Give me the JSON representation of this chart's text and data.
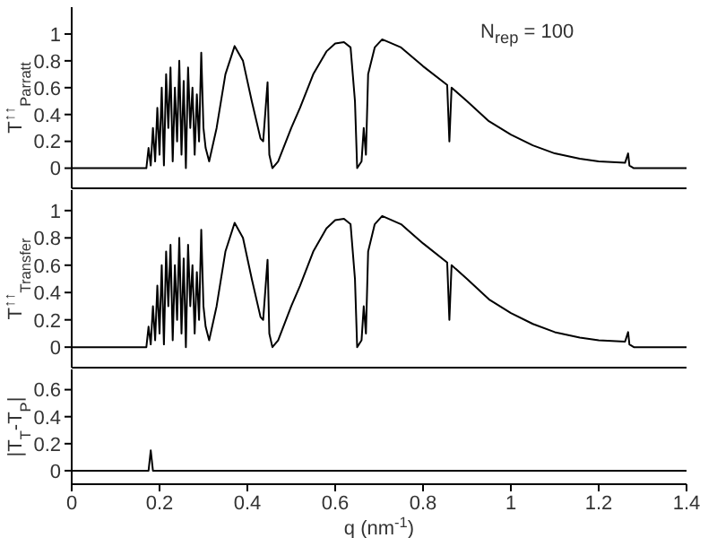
{
  "chart_data": [
    {
      "type": "line",
      "ylabel": "T$^{↑↑}$$_{Parratt}$",
      "annotations": [
        "N$_{rep}$ = 100"
      ],
      "xlim": [
        0,
        1.4
      ],
      "xticks": [
        0,
        0.2,
        0.4,
        0.6,
        0.8,
        1,
        1.2,
        1.4
      ],
      "ylim": [
        -0.15,
        1.2
      ],
      "yticks": [
        0,
        0.2,
        0.4,
        0.6,
        0.8,
        1
      ],
      "tick_labels": "y",
      "grid": false,
      "legend": false,
      "x": [
        0,
        0.17,
        0.175,
        0.18,
        0.185,
        0.19,
        0.195,
        0.2,
        0.205,
        0.21,
        0.215,
        0.22,
        0.225,
        0.23,
        0.235,
        0.24,
        0.245,
        0.25,
        0.255,
        0.26,
        0.265,
        0.27,
        0.275,
        0.28,
        0.285,
        0.29,
        0.295,
        0.3,
        0.305,
        0.313,
        0.33,
        0.35,
        0.371,
        0.39,
        0.41,
        0.43,
        0.436,
        0.446,
        0.45,
        0.457,
        0.47,
        0.5,
        0.52,
        0.55,
        0.58,
        0.6,
        0.62,
        0.635,
        0.645,
        0.65,
        0.66,
        0.665,
        0.67,
        0.675,
        0.69,
        0.707,
        0.75,
        0.8,
        0.855,
        0.86,
        0.865,
        0.9,
        0.95,
        1,
        1.05,
        1.1,
        1.157,
        1.2,
        1.26,
        1.267,
        1.27,
        1.28,
        1.4
      ],
      "series": [
        {
          "color": "#000000",
          "values": [
            0,
            0,
            0.15,
            0.02,
            0.3,
            0.05,
            0.45,
            0.1,
            0.6,
            0.02,
            0.7,
            0.3,
            0.75,
            0.05,
            0.6,
            0.2,
            0.8,
            0.1,
            0.65,
            0,
            0.75,
            0.3,
            0.6,
            0.1,
            0.55,
            0.2,
            0.86,
            0.3,
            0.15,
            0.05,
            0.3,
            0.7,
            0.91,
            0.8,
            0.5,
            0.22,
            0.2,
            0.64,
            0.1,
            0,
            0.05,
            0.3,
            0.45,
            0.7,
            0.87,
            0.93,
            0.94,
            0.9,
            0.5,
            0,
            0.05,
            0.3,
            0.1,
            0.7,
            0.9,
            0.96,
            0.9,
            0.76,
            0.62,
            0.2,
            0.6,
            0.5,
            0.35,
            0.25,
            0.17,
            0.11,
            0.07,
            0.05,
            0.04,
            0.11,
            0.02,
            0,
            0
          ]
        }
      ]
    },
    {
      "type": "line",
      "ylabel": "T$^{↑↑}$$_{Transfer}$",
      "xlim": [
        0,
        1.4
      ],
      "xticks": [
        0,
        0.2,
        0.4,
        0.6,
        0.8,
        1,
        1.2,
        1.4
      ],
      "ylim": [
        -0.15,
        1.15
      ],
      "yticks": [
        0,
        0.2,
        0.4,
        0.6,
        0.8,
        1
      ],
      "tick_labels": "y",
      "grid": false,
      "legend": false,
      "x": [
        0,
        0.17,
        0.175,
        0.18,
        0.185,
        0.19,
        0.195,
        0.2,
        0.205,
        0.21,
        0.215,
        0.22,
        0.225,
        0.23,
        0.235,
        0.24,
        0.245,
        0.25,
        0.255,
        0.26,
        0.265,
        0.27,
        0.275,
        0.28,
        0.285,
        0.29,
        0.295,
        0.3,
        0.305,
        0.313,
        0.33,
        0.35,
        0.371,
        0.39,
        0.41,
        0.43,
        0.436,
        0.446,
        0.45,
        0.457,
        0.47,
        0.5,
        0.52,
        0.55,
        0.58,
        0.6,
        0.62,
        0.635,
        0.645,
        0.65,
        0.66,
        0.665,
        0.67,
        0.675,
        0.69,
        0.707,
        0.75,
        0.8,
        0.855,
        0.86,
        0.865,
        0.9,
        0.95,
        1,
        1.05,
        1.1,
        1.157,
        1.2,
        1.26,
        1.267,
        1.27,
        1.28,
        1.4
      ],
      "series": [
        {
          "color": "#000000",
          "values": [
            0,
            0,
            0.15,
            0.02,
            0.3,
            0.05,
            0.45,
            0.1,
            0.6,
            0.02,
            0.7,
            0.3,
            0.75,
            0.05,
            0.6,
            0.2,
            0.8,
            0.1,
            0.65,
            0,
            0.75,
            0.3,
            0.6,
            0.1,
            0.55,
            0.2,
            0.86,
            0.3,
            0.15,
            0.05,
            0.3,
            0.7,
            0.91,
            0.8,
            0.5,
            0.22,
            0.2,
            0.64,
            0.1,
            0,
            0.05,
            0.3,
            0.45,
            0.7,
            0.87,
            0.93,
            0.94,
            0.9,
            0.5,
            0,
            0.05,
            0.3,
            0.1,
            0.7,
            0.9,
            0.96,
            0.9,
            0.76,
            0.62,
            0.2,
            0.6,
            0.5,
            0.35,
            0.25,
            0.17,
            0.11,
            0.07,
            0.05,
            0.04,
            0.11,
            0.02,
            0,
            0
          ]
        }
      ]
    },
    {
      "type": "line",
      "ylabel": "|T$_{T}$-T$_{P}$|",
      "xlabel": "q (nm$^{-1}$)",
      "xlim": [
        0,
        1.4
      ],
      "xticks": [
        0,
        0.2,
        0.4,
        0.6,
        0.8,
        1,
        1.2,
        1.4
      ],
      "ylim": [
        -0.1,
        0.75
      ],
      "yticks": [
        0,
        0.2,
        0.4,
        0.6
      ],
      "grid": false,
      "legend": false,
      "x": [
        0,
        0.175,
        0.18,
        0.185,
        1.4
      ],
      "series": [
        {
          "color": "#000000",
          "values": [
            0,
            0,
            0.15,
            0,
            0
          ]
        }
      ]
    }
  ]
}
